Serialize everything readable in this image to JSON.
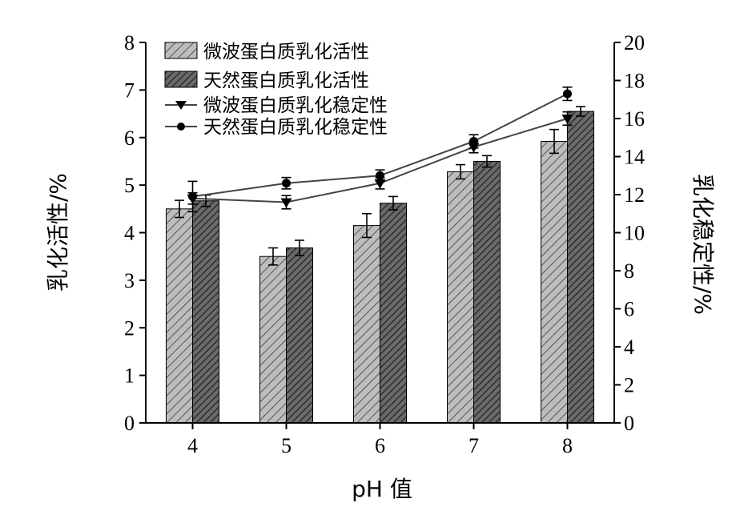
{
  "chart_data": {
    "type": "bar",
    "xlabel": "pH 值",
    "ylabel_left": "乳化活性/%",
    "ylabel_right": "乳化稳定性/%",
    "categories": [
      "4",
      "5",
      "6",
      "7",
      "8"
    ],
    "ylim_left": [
      0,
      8
    ],
    "yticks_left": [
      "0",
      "1",
      "2",
      "3",
      "4",
      "5",
      "6",
      "7",
      "8"
    ],
    "ylim_right": [
      0,
      20
    ],
    "yticks_right": [
      "0",
      "2",
      "4",
      "6",
      "8",
      "10",
      "12",
      "14",
      "16",
      "18",
      "20"
    ],
    "grid": false,
    "legend_position": "top-left",
    "bar_series": [
      {
        "name": "微波蛋白质乳化活性",
        "values": [
          4.5,
          3.5,
          4.15,
          5.28,
          5.92
        ],
        "errors": [
          0.18,
          0.18,
          0.25,
          0.15,
          0.25
        ],
        "fill": "#bdbdbd",
        "hatch": "#555555"
      },
      {
        "name": "天然蛋白质乳化活性",
        "values": [
          4.67,
          3.68,
          4.62,
          5.5,
          6.55
        ],
        "errors": [
          0.12,
          0.16,
          0.14,
          0.12,
          0.1
        ],
        "fill": "#6a6a6a",
        "hatch": "#222222"
      }
    ],
    "line_series": [
      {
        "name": "微波蛋白质乳化稳定性",
        "marker": "triangle-down",
        "values": [
          11.8,
          11.6,
          12.6,
          14.5,
          16.0
        ],
        "errors": [
          0.3,
          0.35,
          0.3,
          0.3,
          0.35
        ]
      },
      {
        "name": "天然蛋白质乳化稳定性",
        "marker": "circle",
        "values": [
          11.9,
          12.6,
          13.0,
          14.8,
          17.3
        ],
        "errors": [
          0.8,
          0.3,
          0.3,
          0.35,
          0.35
        ]
      }
    ]
  }
}
